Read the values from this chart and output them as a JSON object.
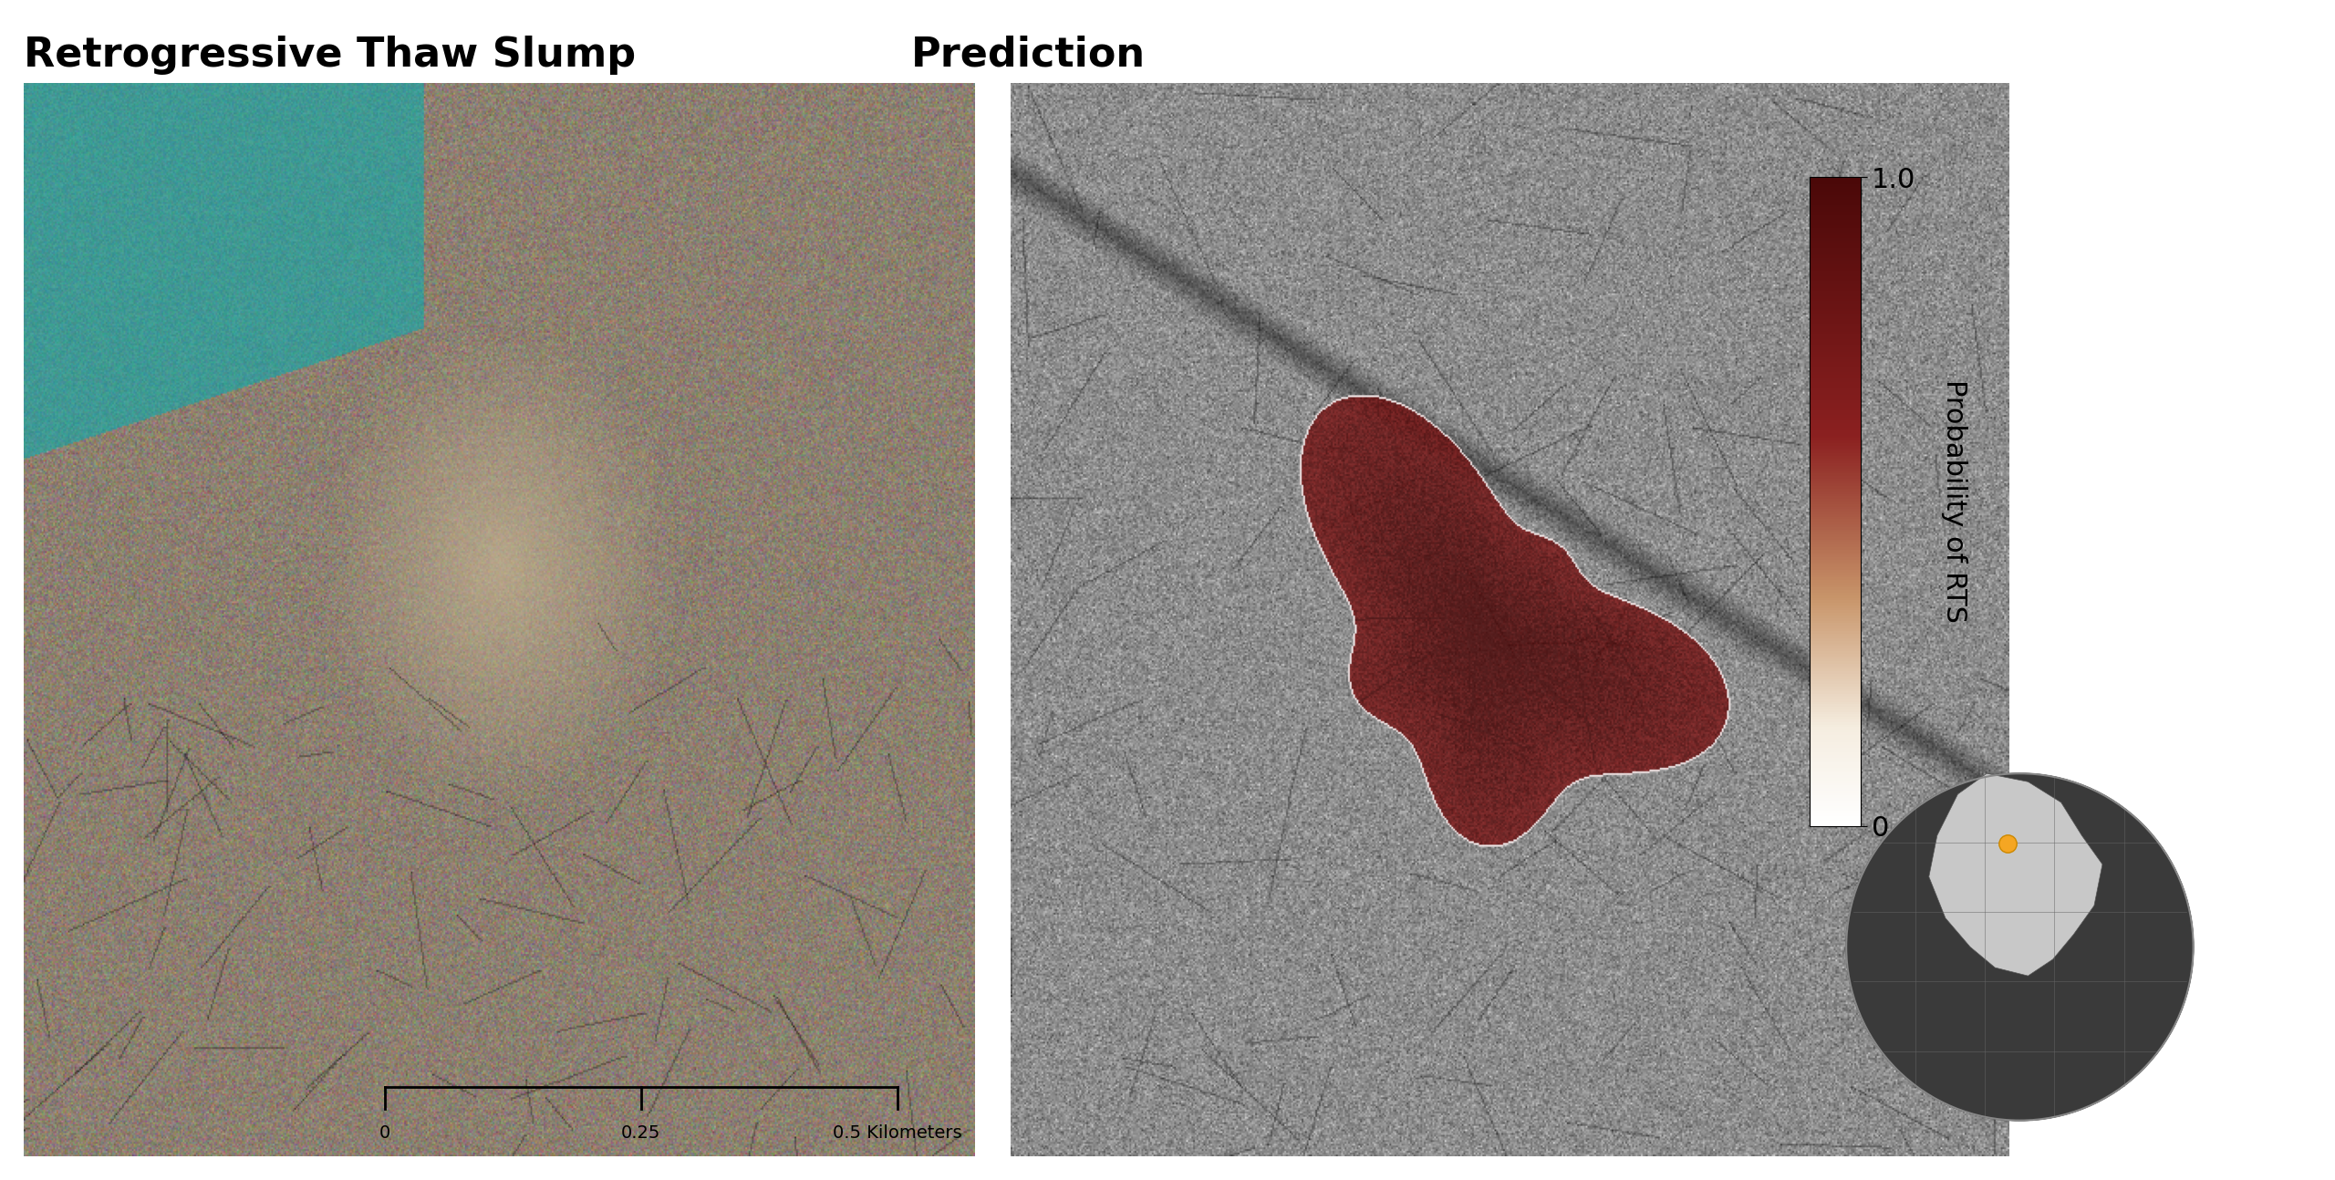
{
  "title_left": "Retrogressive Thaw Slump",
  "title_right": "Prediction",
  "colorbar_label": "Probability of RTS",
  "colorbar_ticks": [
    0,
    1.0
  ],
  "colorbar_ticklabels": [
    "0",
    "1.0"
  ],
  "background_color": "#ffffff",
  "title_fontsize": 32,
  "colorbar_fontsize": 22,
  "scale_bar_text": "0    0.25    0.5 Kilometers",
  "left_panel_bg": "#c8c8c8",
  "right_panel_bg": "#a0a0a0"
}
